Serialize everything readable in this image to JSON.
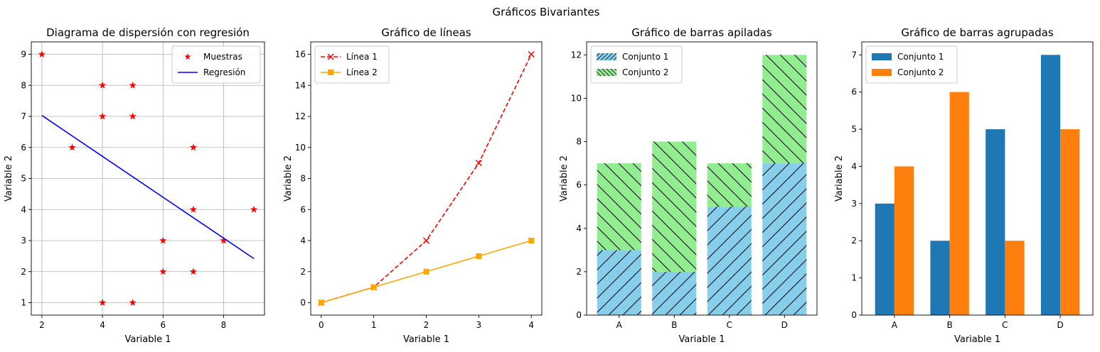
{
  "figure": {
    "title": "Gráficos Bivariantes"
  },
  "chart_data": [
    {
      "type": "scatter",
      "title": "Diagrama de dispersión con regresión",
      "xlabel": "Variable 1",
      "ylabel": "Variable 2",
      "xlim": [
        1.65,
        9.35
      ],
      "ylim": [
        0.6,
        9.4
      ],
      "xticks": [
        2,
        4,
        6,
        8
      ],
      "yticks": [
        1,
        2,
        3,
        4,
        5,
        6,
        7,
        8,
        9
      ],
      "grid": true,
      "legend": "upper right",
      "series": [
        {
          "name": "Muestras",
          "kind": "scatter",
          "marker": "star",
          "color": "#ff0000",
          "points": [
            [
              2,
              9
            ],
            [
              3,
              6
            ],
            [
              4,
              8
            ],
            [
              4,
              7
            ],
            [
              4,
              1
            ],
            [
              5,
              8
            ],
            [
              5,
              7
            ],
            [
              5,
              1
            ],
            [
              6,
              3
            ],
            [
              6,
              2
            ],
            [
              7,
              6
            ],
            [
              7,
              4
            ],
            [
              7,
              2
            ],
            [
              8,
              3
            ],
            [
              9,
              4
            ]
          ]
        },
        {
          "name": "Regresión",
          "kind": "line",
          "color": "#0000ff",
          "points": [
            [
              2,
              7.03
            ],
            [
              9,
              2.42
            ]
          ]
        }
      ]
    },
    {
      "type": "line",
      "title": "Gráfico de líneas",
      "xlabel": "Variable 1",
      "ylabel": "Variable 2",
      "xlim": [
        -0.2,
        4.2
      ],
      "ylim": [
        -0.8,
        16.8
      ],
      "xticks": [
        0,
        1,
        2,
        3,
        4
      ],
      "yticks": [
        0,
        2,
        4,
        6,
        8,
        10,
        12,
        14,
        16
      ],
      "grid": false,
      "legend": "upper left",
      "x": [
        0,
        1,
        2,
        3,
        4
      ],
      "series": [
        {
          "name": "Línea 1",
          "values": [
            0,
            1,
            4,
            9,
            16
          ],
          "color": "#ff0000",
          "dash": "dashed",
          "marker": "x"
        },
        {
          "name": "Línea 2",
          "values": [
            0,
            1,
            2,
            3,
            4
          ],
          "color": "#ffa500",
          "dash": "solid",
          "marker": "square"
        }
      ]
    },
    {
      "type": "bar",
      "stacked": true,
      "title": "Gráfico de barras apiladas",
      "xlabel": "Variable 1",
      "ylabel": "Variable 2",
      "ylim": [
        0,
        12.6
      ],
      "yticks": [
        0,
        2,
        4,
        6,
        8,
        10,
        12
      ],
      "grid": false,
      "legend": "upper left",
      "categories": [
        "A",
        "B",
        "C",
        "D"
      ],
      "series": [
        {
          "name": "Conjunto 1",
          "values": [
            3,
            2,
            5,
            7
          ],
          "color": "#87ceeb",
          "hatch": "/"
        },
        {
          "name": "Conjunto 2",
          "values": [
            4,
            6,
            2,
            5
          ],
          "color": "#90ee90",
          "hatch": "\\"
        }
      ]
    },
    {
      "type": "bar",
      "stacked": false,
      "title": "Gráfico de barras agrupadas",
      "xlabel": "Variable 1",
      "ylabel": "Variable 2",
      "ylim": [
        0,
        7.35
      ],
      "yticks": [
        0,
        1,
        2,
        3,
        4,
        5,
        6,
        7
      ],
      "grid": false,
      "legend": "upper left",
      "categories": [
        "A",
        "B",
        "C",
        "D"
      ],
      "series": [
        {
          "name": "Conjunto 1",
          "values": [
            3,
            2,
            5,
            7
          ],
          "color": "#1f77b4"
        },
        {
          "name": "Conjunto 2",
          "values": [
            4,
            6,
            2,
            5
          ],
          "color": "#ff7f0e"
        }
      ]
    }
  ]
}
